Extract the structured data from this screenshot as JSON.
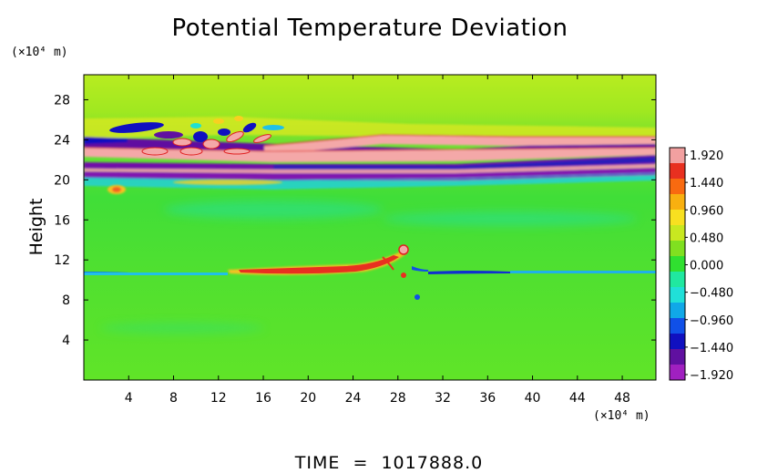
{
  "chart_data": {
    "type": "heatmap",
    "title": "Potential Temperature Deviation",
    "ylabel": "Height",
    "y_unit": "(×10⁴ m)",
    "x_unit": "(×10⁴ m)",
    "footer": "TIME  =  1017888.0",
    "x_ticks": [
      "4",
      "8",
      "12",
      "16",
      "20",
      "24",
      "28",
      "32",
      "36",
      "40",
      "44",
      "48"
    ],
    "x_tick_values": [
      4,
      8,
      12,
      16,
      20,
      24,
      28,
      32,
      36,
      40,
      44,
      48
    ],
    "xlim": [
      0,
      51
    ],
    "y_ticks": [
      "4",
      "8",
      "12",
      "16",
      "20",
      "24",
      "28"
    ],
    "y_tick_values": [
      4,
      8,
      12,
      16,
      20,
      24,
      28
    ],
    "ylim": [
      0,
      30.5
    ],
    "colorbar": {
      "labels": [
        "1.920",
        "1.440",
        "0.960",
        "0.480",
        "0.000",
        "−0.480",
        "−0.960",
        "−1.440",
        "−1.920"
      ],
      "values": [
        1.92,
        1.44,
        0.96,
        0.48,
        0.0,
        -0.48,
        -0.96,
        -1.44,
        -1.92
      ],
      "colors_top_to_bottom": [
        "#f2a0a0",
        "#e83020",
        "#f86a10",
        "#f8b010",
        "#f8e020",
        "#c8e820",
        "#80e020",
        "#30e030",
        "#20e8a0",
        "#20e0d8",
        "#10a8e8",
        "#1050e8",
        "#1010c0",
        "#6010a0",
        "#a020c0"
      ]
    },
    "features": {
      "background_value": 0.35,
      "upper_band_y_range": [
        19.5,
        24.5
      ],
      "lower_disturbance_y": [
        9.5,
        13.0
      ],
      "lower_disturbance_x": [
        12,
        30
      ]
    }
  }
}
